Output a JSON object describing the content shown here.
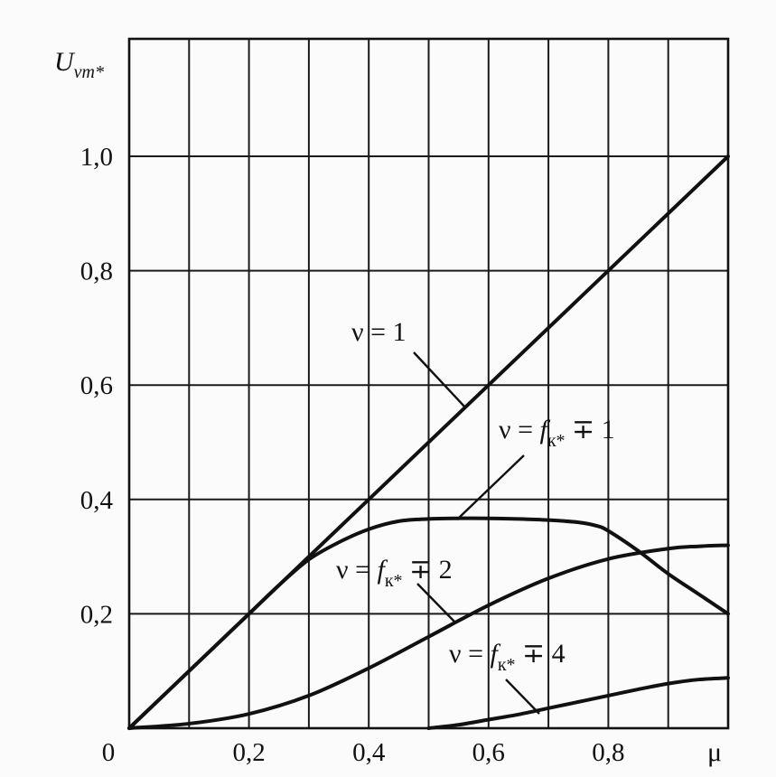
{
  "chart_data": {
    "type": "line",
    "xlabel": "μ",
    "ylabel": {
      "main": "U",
      "sub": "νm*"
    },
    "xlim": [
      0,
      1.0
    ],
    "ylim": [
      0,
      1.05
    ],
    "x_tick_labels": [
      {
        "value": 0,
        "label": "0"
      },
      {
        "value": 0.2,
        "label": "0,2"
      },
      {
        "value": 0.4,
        "label": "0,4"
      },
      {
        "value": 0.6,
        "label": "0,6"
      },
      {
        "value": 0.8,
        "label": "0,8"
      }
    ],
    "y_tick_labels": [
      {
        "value": 0.2,
        "label": "0,2"
      },
      {
        "value": 0.4,
        "label": "0,4"
      },
      {
        "value": 0.6,
        "label": "0,6"
      },
      {
        "value": 0.8,
        "label": "0,8"
      },
      {
        "value": 1.0,
        "label": "1,0"
      }
    ],
    "grid": true,
    "grid_x_step": 0.1,
    "grid_y_step": 0.2,
    "series": [
      {
        "name": "ν = 1",
        "x": [
          0,
          0.2,
          0.4,
          0.6,
          0.8,
          1.0
        ],
        "y": [
          0,
          0.2,
          0.4,
          0.6,
          0.8,
          1.0
        ]
      },
      {
        "name": "ν = fк* ∓ 1",
        "x": [
          0,
          0.1,
          0.2,
          0.25,
          0.3,
          0.35,
          0.4,
          0.45,
          0.5,
          0.55,
          0.6,
          0.65,
          0.7,
          0.75,
          0.78,
          0.8,
          0.85,
          0.9,
          0.95,
          1.0
        ],
        "y": [
          0,
          0.1,
          0.2,
          0.25,
          0.295,
          0.325,
          0.348,
          0.362,
          0.366,
          0.367,
          0.367,
          0.366,
          0.364,
          0.36,
          0.354,
          0.345,
          0.31,
          0.27,
          0.235,
          0.2
        ]
      },
      {
        "name": "ν = fк* ∓ 2",
        "x": [
          0,
          0.1,
          0.2,
          0.3,
          0.4,
          0.5,
          0.6,
          0.7,
          0.8,
          0.9,
          0.95,
          1.0
        ],
        "y": [
          0,
          0.008,
          0.025,
          0.057,
          0.105,
          0.16,
          0.215,
          0.262,
          0.296,
          0.314,
          0.318,
          0.32
        ]
      },
      {
        "name": "ν = fк* ∓ 4",
        "x": [
          0.5,
          0.55,
          0.6,
          0.65,
          0.7,
          0.75,
          0.8,
          0.85,
          0.9,
          0.95,
          1.0
        ],
        "y": [
          0,
          0.006,
          0.015,
          0.024,
          0.035,
          0.046,
          0.057,
          0.068,
          0.078,
          0.085,
          0.088
        ]
      }
    ],
    "annotations": [
      {
        "series": 0,
        "parts": [
          "ν = 1"
        ]
      },
      {
        "series": 1,
        "parts": [
          "ν = ",
          "f",
          "к*",
          " ∓ 1"
        ]
      },
      {
        "series": 2,
        "parts": [
          "ν = ",
          "f",
          "к*",
          " ∓ 2"
        ]
      },
      {
        "series": 3,
        "parts": [
          "ν = ",
          "f",
          "к*",
          " ∓ 4"
        ]
      }
    ]
  }
}
